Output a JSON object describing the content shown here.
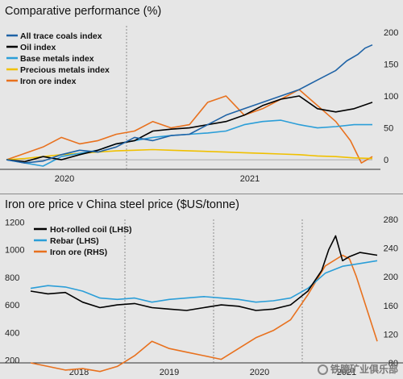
{
  "watermark": "铁臆矿业俱乐部",
  "chart_data": [
    {
      "type": "line",
      "title": "Comparative performance (%)",
      "x_tick_labels": [
        "2020",
        "2021"
      ],
      "y_right_ticks": [
        0,
        50,
        100,
        150,
        200
      ],
      "ylim": [
        -15,
        210
      ],
      "grid": false,
      "legend_position": "top-left",
      "series": [
        {
          "name": "All trace coals index",
          "color": "#1f63a6",
          "x": [
            0,
            0.05,
            0.1,
            0.15,
            0.2,
            0.25,
            0.3,
            0.35,
            0.4,
            0.45,
            0.5,
            0.55,
            0.6,
            0.65,
            0.7,
            0.75,
            0.8,
            0.85,
            0.9,
            0.93,
            0.96,
            0.98,
            1.0
          ],
          "values": [
            0,
            -5,
            -2,
            8,
            15,
            12,
            20,
            35,
            30,
            38,
            40,
            55,
            70,
            80,
            90,
            100,
            110,
            125,
            140,
            155,
            165,
            175,
            180
          ]
        },
        {
          "name": "Oil index",
          "color": "#000000",
          "x": [
            0,
            0.05,
            0.1,
            0.15,
            0.2,
            0.25,
            0.3,
            0.35,
            0.4,
            0.45,
            0.5,
            0.55,
            0.6,
            0.65,
            0.7,
            0.75,
            0.8,
            0.85,
            0.9,
            0.95,
            1.0
          ],
          "values": [
            0,
            -3,
            5,
            0,
            8,
            15,
            25,
            30,
            45,
            48,
            50,
            55,
            60,
            70,
            85,
            95,
            100,
            80,
            75,
            80,
            90
          ]
        },
        {
          "name": "Base metals index",
          "color": "#2b9ed8",
          "x": [
            0,
            0.05,
            0.1,
            0.15,
            0.2,
            0.25,
            0.3,
            0.35,
            0.4,
            0.45,
            0.5,
            0.55,
            0.6,
            0.65,
            0.7,
            0.75,
            0.8,
            0.85,
            0.9,
            0.95,
            1.0
          ],
          "values": [
            0,
            -5,
            -10,
            5,
            10,
            15,
            25,
            30,
            35,
            38,
            40,
            42,
            45,
            55,
            60,
            62,
            55,
            50,
            52,
            55,
            55
          ]
        },
        {
          "name": "Precious metals index",
          "color": "#f0c000",
          "x": [
            0,
            0.05,
            0.1,
            0.15,
            0.2,
            0.25,
            0.3,
            0.35,
            0.4,
            0.45,
            0.5,
            0.55,
            0.6,
            0.65,
            0.7,
            0.75,
            0.8,
            0.85,
            0.9,
            0.95,
            1.0
          ],
          "values": [
            0,
            2,
            5,
            8,
            10,
            12,
            14,
            15,
            16,
            15,
            14,
            13,
            12,
            11,
            10,
            9,
            8,
            6,
            5,
            3,
            2
          ]
        },
        {
          "name": "Iron ore index",
          "color": "#e8711e",
          "x": [
            0,
            0.05,
            0.1,
            0.15,
            0.2,
            0.25,
            0.3,
            0.35,
            0.4,
            0.45,
            0.5,
            0.55,
            0.6,
            0.65,
            0.7,
            0.75,
            0.8,
            0.83,
            0.86,
            0.9,
            0.94,
            0.97,
            1.0
          ],
          "values": [
            0,
            10,
            20,
            35,
            25,
            30,
            40,
            45,
            60,
            50,
            55,
            90,
            100,
            70,
            80,
            95,
            110,
            95,
            80,
            60,
            30,
            -5,
            5
          ]
        }
      ]
    },
    {
      "type": "line",
      "title": "Iron ore price v China steel price ($US/tonne)",
      "x_tick_labels": [
        "2018",
        "2019",
        "2020",
        "2021"
      ],
      "y_left_ticks": [
        200,
        400,
        600,
        800,
        1000,
        1200
      ],
      "y_right_ticks": [
        80,
        120,
        160,
        200,
        240,
        280
      ],
      "ylim_left": [
        180,
        1220
      ],
      "ylim_right": [
        80,
        280
      ],
      "grid": false,
      "legend_position": "top-left",
      "series": [
        {
          "name": "Hot-rolled coil (LHS)",
          "axis": "left",
          "color": "#000000",
          "x": [
            0,
            0.05,
            0.1,
            0.15,
            0.2,
            0.25,
            0.3,
            0.35,
            0.4,
            0.45,
            0.5,
            0.55,
            0.6,
            0.65,
            0.7,
            0.75,
            0.8,
            0.84,
            0.86,
            0.88,
            0.9,
            0.92,
            0.95,
            1.0
          ],
          "values": [
            700,
            680,
            690,
            620,
            580,
            600,
            610,
            580,
            570,
            560,
            580,
            600,
            590,
            560,
            570,
            600,
            700,
            850,
            1000,
            1100,
            920,
            950,
            980,
            960
          ]
        },
        {
          "name": "Rebar (LHS)",
          "axis": "left",
          "color": "#2b9ed8",
          "x": [
            0,
            0.05,
            0.1,
            0.15,
            0.2,
            0.25,
            0.3,
            0.35,
            0.4,
            0.45,
            0.5,
            0.55,
            0.6,
            0.65,
            0.7,
            0.75,
            0.8,
            0.85,
            0.9,
            0.95,
            1.0
          ],
          "values": [
            720,
            740,
            730,
            700,
            650,
            640,
            650,
            620,
            640,
            650,
            660,
            650,
            640,
            620,
            630,
            650,
            720,
            830,
            880,
            900,
            920
          ]
        },
        {
          "name": "Iron ore (RHS)",
          "axis": "right",
          "color": "#e8711e",
          "x": [
            0,
            0.05,
            0.1,
            0.15,
            0.2,
            0.25,
            0.3,
            0.35,
            0.4,
            0.45,
            0.5,
            0.55,
            0.6,
            0.65,
            0.7,
            0.75,
            0.8,
            0.85,
            0.9,
            0.92,
            0.94,
            0.96,
            0.98,
            1.0
          ],
          "values": [
            80,
            75,
            70,
            72,
            68,
            75,
            90,
            110,
            100,
            95,
            90,
            85,
            100,
            115,
            125,
            140,
            175,
            215,
            230,
            225,
            200,
            170,
            140,
            110
          ]
        }
      ]
    }
  ]
}
